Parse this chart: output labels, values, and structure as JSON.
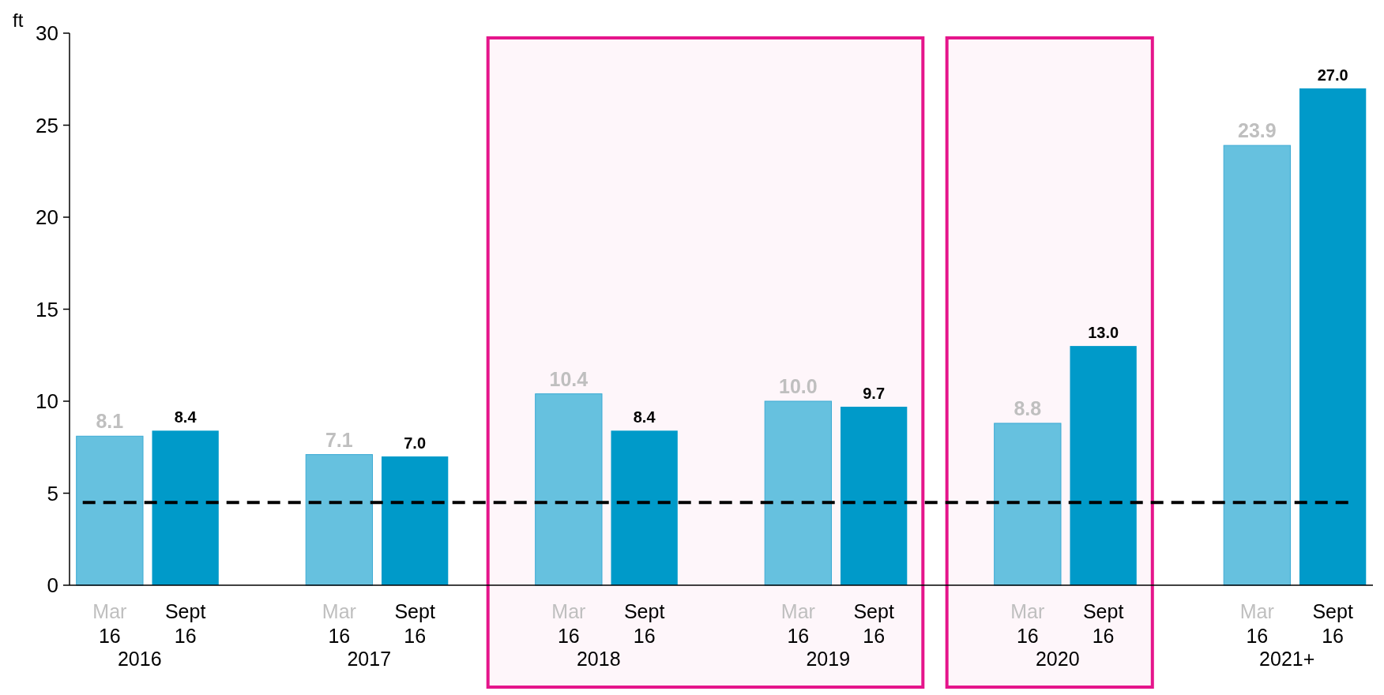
{
  "chart_data": {
    "type": "bar",
    "ylabel": "ft",
    "categories": [
      "2016",
      "2017",
      "2018",
      "2019",
      "2020",
      "2021+"
    ],
    "series": [
      {
        "name": "Mar 16",
        "color": "#66c1df",
        "values": [
          8.1,
          7.1,
          10.4,
          10.0,
          8.8,
          23.9
        ],
        "value_labels": [
          "8.1",
          "7.1",
          "10.4",
          "10.0",
          "8.8",
          "23.9"
        ]
      },
      {
        "name": "Sept 16",
        "color": "#009ac9",
        "values": [
          8.4,
          7.0,
          8.4,
          9.7,
          13.0,
          27.0
        ],
        "value_labels": [
          "8.4",
          "7.0",
          "8.4",
          "9.7",
          "13.0",
          "27.0"
        ]
      }
    ],
    "ylim": [
      0,
      30
    ],
    "yticks": [
      0,
      5,
      10,
      15,
      20,
      25,
      30
    ],
    "grid": false,
    "bands": [
      {
        "axis": "x",
        "from": "2018",
        "to": "2019",
        "color": "#e5158b"
      },
      {
        "axis": "x",
        "from": "2020",
        "to": "2020",
        "color": "#e5158b"
      }
    ],
    "ref_lines": [
      {
        "axis": "y",
        "value": 4.5,
        "color": "#000000",
        "line_style": "dashed"
      }
    ]
  }
}
